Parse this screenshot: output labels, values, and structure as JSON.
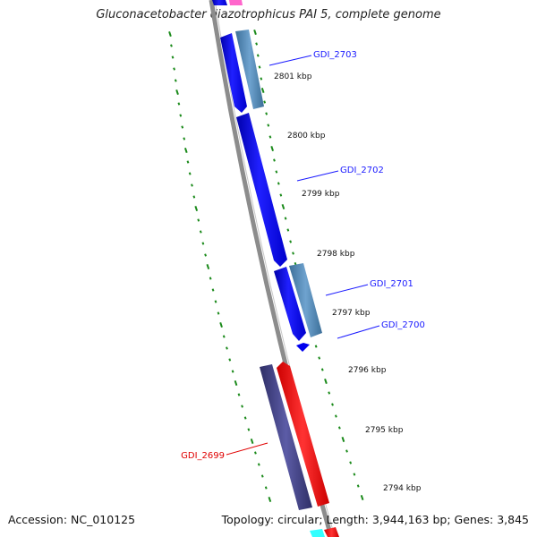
{
  "title": "Gluconacetobacter diazotrophicus PAI 5, complete genome",
  "footer": {
    "accession": "Accession: NC_010125",
    "summary": "Topology: circular; Length: 3,944,163 bp; Genes: 3,845"
  },
  "scale_labels": [
    "2801 kbp",
    "2800 kbp",
    "2799 kbp",
    "2798 kbp",
    "2797 kbp",
    "2796 kbp",
    "2795 kbp",
    "2794 kbp"
  ],
  "gene_labels": [
    {
      "name": "GDI_2703",
      "color": "#1a1aff"
    },
    {
      "name": "GDI_2702",
      "color": "#1a1aff"
    },
    {
      "name": "GDI_2701",
      "color": "#1a1aff"
    },
    {
      "name": "GDI_2700",
      "color": "#1a1aff"
    },
    {
      "name": "GDI_2699",
      "color": "#e00000"
    }
  ],
  "colors": {
    "backbone": "#8c8c8c",
    "cds_forward": "#0000ee",
    "cds_steelblue": "#4f86b5",
    "cds_slate": "#4a4a8c",
    "cds_red": "#ff0000",
    "gc_ticks": "#1a8a1a",
    "pink": "#ff66cc",
    "cyan": "#33ffff"
  }
}
